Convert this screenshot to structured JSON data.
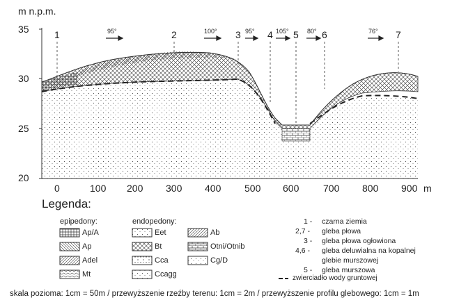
{
  "axis": {
    "y_title": "m  n.p.m.",
    "y_ticks": [
      "35",
      "30",
      "25",
      "20"
    ],
    "x_ticks": [
      "0",
      "100",
      "200",
      "300",
      "400",
      "500",
      "600",
      "700",
      "800",
      "900"
    ],
    "x_unit": "m"
  },
  "profile_points": [
    "1",
    "2",
    "3",
    "4",
    "5",
    "6",
    "7"
  ],
  "directions": [
    "95°",
    "100°",
    "95°",
    "105°",
    "80°",
    "76°"
  ],
  "legend": {
    "title": "Legenda:",
    "epipedony_title": "epipedony:",
    "endopedony_title": "endopedony:",
    "epi": [
      "Ap/A",
      "Ap",
      "Adel",
      "Mt"
    ],
    "endo": [
      "Eet",
      "Bt",
      "Cca",
      "Ccagg"
    ],
    "endo2": [
      "Ab",
      "Otni/Otnib",
      "Cg/D"
    ],
    "descriptions": [
      {
        "num": "1 -",
        "text": "czarna ziemia"
      },
      {
        "num": "2,7 -",
        "text": "gleba płowa"
      },
      {
        "num": "3 -",
        "text": "gleba płowa ogłowiona"
      },
      {
        "num": "4,6 -",
        "text": "gleba deluwialna na kopalnej"
      },
      {
        "num": "",
        "text": "glebie murszowej"
      },
      {
        "num": "5 -",
        "text": "gleba murszowa"
      }
    ],
    "water_table": "zwierciadło wody gruntowej"
  },
  "footer": "skala pozioma: 1cm = 50m / przewyższenie rzeźby terenu: 1cm = 2m / przewyższenie profilu glebowego: 1cm = 1m",
  "colors": {
    "line": "#333333",
    "ink": "#222222"
  }
}
